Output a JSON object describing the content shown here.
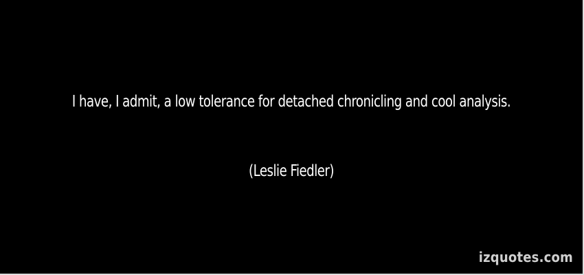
{
  "quote": {
    "text": "I have, I admit, a low tolerance for detached chronicling and cool analysis.",
    "author": "(Leslie Fiedler)"
  },
  "watermark": "izquotes.com",
  "colors": {
    "background": "#000000",
    "text": "#ffffff",
    "watermark": "#cfcfcf"
  }
}
